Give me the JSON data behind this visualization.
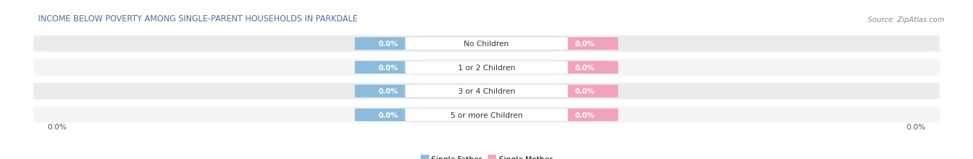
{
  "title": "INCOME BELOW POVERTY AMONG SINGLE-PARENT HOUSEHOLDS IN PARKDALE",
  "source": "Source: ZipAtlas.com",
  "categories": [
    "No Children",
    "1 or 2 Children",
    "3 or 4 Children",
    "5 or more Children"
  ],
  "single_father_values": [
    0.0,
    0.0,
    0.0,
    0.0
  ],
  "single_mother_values": [
    0.0,
    0.0,
    0.0,
    0.0
  ],
  "father_color": "#8BBCDB",
  "mother_color": "#F2A3BC",
  "row_bg_even": "#EBEBEB",
  "row_bg_odd": "#F5F5F5",
  "title_fontsize": 8.5,
  "source_fontsize": 7.5,
  "value_fontsize": 7.5,
  "cat_fontsize": 8.0,
  "tick_fontsize": 8.0,
  "axis_label_left": "0.0%",
  "axis_label_right": "0.0%",
  "legend_labels": [
    "Single Father",
    "Single Mother"
  ],
  "legend_colors": [
    "#8BBCDB",
    "#F2A3BC"
  ],
  "title_color": "#4A6FA5",
  "source_color": "#888888",
  "tick_color": "#555555"
}
